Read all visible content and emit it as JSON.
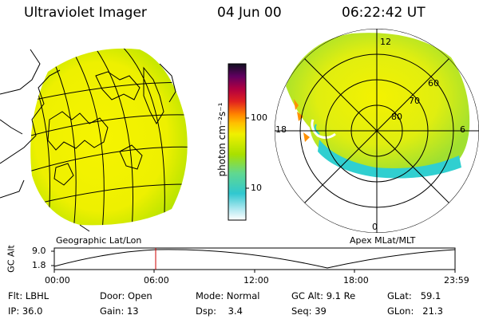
{
  "header": {
    "title": "Ultraviolet Imager",
    "date": "04 Jun 00",
    "time": "06:22:42 UT"
  },
  "colorbar": {
    "unit_label": "photon cm⁻²s⁻¹",
    "ticks": [
      "100",
      "10"
    ]
  },
  "geo_panel": {
    "label": "Geographic Lat/Lon"
  },
  "polar_panel": {
    "label": "Apex MLat/MLT",
    "lat_labels": [
      "60",
      "70",
      "80"
    ],
    "mlt_labels": {
      "top": "12",
      "left": "18",
      "right": "6",
      "bottom": "0"
    }
  },
  "altitude_plot": {
    "ylabel": "GC Alt",
    "yticks": [
      "9.0",
      "1.8"
    ],
    "xticks": [
      "00:00",
      "06:00",
      "12:00",
      "18:00",
      "23:59"
    ],
    "marker_time": "06:22:42"
  },
  "info": {
    "flt": "Flt: LBHL",
    "ip": "IP: 36.0",
    "door": "Door: Open",
    "gain": "Gain: 13",
    "mode": "Mode: Normal",
    "dsp": "Dsp:    3.4",
    "gcalt": "GC Alt: 9.1 Re",
    "seq": "Seq: 39",
    "glat": "GLat:   59.1",
    "glon": "GLon:   21.3"
  },
  "colors": {
    "aurora_yellow": "#f2f000",
    "aurora_green": "#a8e000",
    "aurora_cyan": "#30d0d0",
    "marker_red": "#cc0000"
  }
}
